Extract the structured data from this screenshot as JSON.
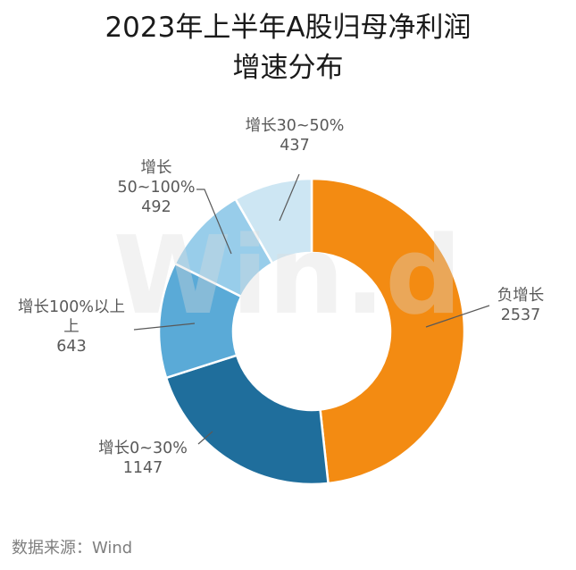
{
  "chart_data": {
    "type": "pie",
    "subtype": "donut",
    "title_lines": [
      "2023年上半年A股归母净利润",
      "增速分布"
    ],
    "slices": [
      {
        "label": "负增长",
        "value": 2537,
        "color": "#F38B12"
      },
      {
        "label": "增长0~30%",
        "value": 1147,
        "color": "#1F6E9C"
      },
      {
        "label": "增长100%以上",
        "value": 643,
        "color": "#5AAAD7"
      },
      {
        "label": "增长50~100%",
        "value": 492,
        "color": "#98CDEA"
      },
      {
        "label": "增长30~50%",
        "value": 437,
        "color": "#CDE6F3"
      }
    ],
    "label_lines": [
      [
        "负增长",
        "2537"
      ],
      [
        "增长0~30%",
        "1147"
      ],
      [
        "增长100%以上",
        "上",
        "643"
      ],
      [
        "增长",
        "50~100%",
        "492"
      ],
      [
        "增长30~50%",
        "437"
      ]
    ],
    "legend": "none"
  },
  "source": "数据来源：Wind",
  "watermark": "Win.d",
  "colors": {
    "title": "#1a1a1a",
    "label": "#595959",
    "source": "#7f7f7f"
  }
}
